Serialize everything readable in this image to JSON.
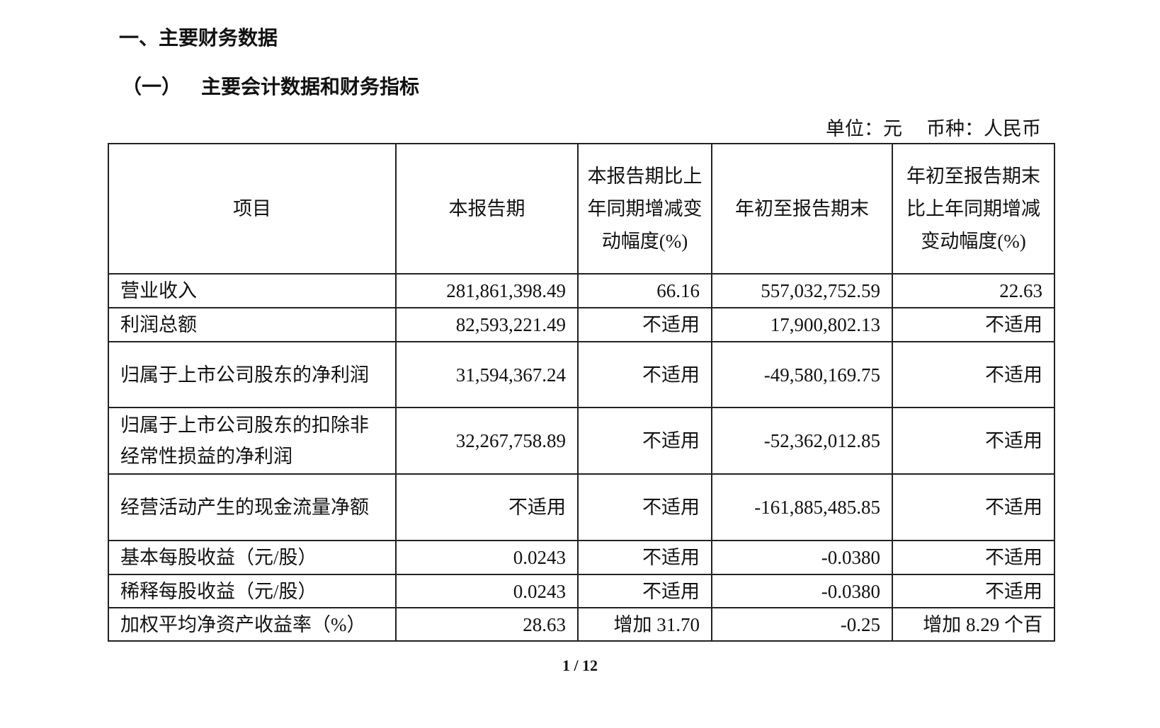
{
  "heading": "一、主要财务数据",
  "subheading": {
    "number": "（一）",
    "title": "主要会计数据和财务指标"
  },
  "unit": {
    "unit": "单位：元",
    "currency": "币种：人民币"
  },
  "table": {
    "headers": [
      "项目",
      "本报告期",
      "本报告期比上年同期增减变动幅度(%)",
      "年初至报告期末",
      "年初至报告期末比上年同期增减变动幅度(%)"
    ],
    "rows": [
      [
        "营业收入",
        "281,861,398.49",
        "66.16",
        "557,032,752.59",
        "22.63"
      ],
      [
        "利润总额",
        "82,593,221.49",
        "不适用",
        "17,900,802.13",
        "不适用"
      ],
      [
        "归属于上市公司股东的净利润",
        "31,594,367.24",
        "不适用",
        "-49,580,169.75",
        "不适用"
      ],
      [
        "归属于上市公司股东的扣除非经常性损益的净利润",
        "32,267,758.89",
        "不适用",
        "-52,362,012.85",
        "不适用"
      ],
      [
        "经营活动产生的现金流量净额",
        "不适用",
        "不适用",
        "-161,885,485.85",
        "不适用"
      ],
      [
        "基本每股收益（元/股）",
        "0.0243",
        "不适用",
        "-0.0380",
        "不适用"
      ],
      [
        "稀释每股收益（元/股）",
        "0.0243",
        "不适用",
        "-0.0380",
        "不适用"
      ],
      [
        "加权平均净资产收益率（%）",
        "28.63",
        "增加 31.70",
        "-0.25",
        "增加 8.29 个百"
      ]
    ]
  },
  "page_number": "1 / 12"
}
